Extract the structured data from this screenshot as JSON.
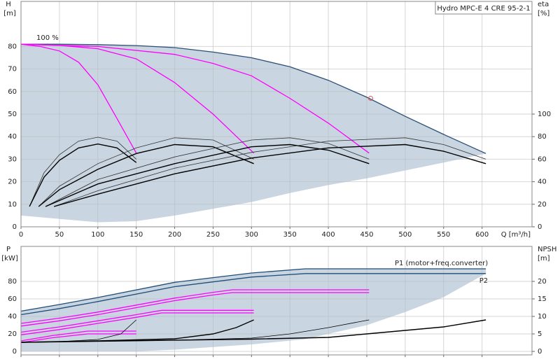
{
  "chart_data": [
    {
      "type": "line",
      "title": "Hydro MPC-E 4 CRE 95-2-1",
      "ylabel": "H",
      "yunit": "[m]",
      "y2label": "eta",
      "y2unit": "[%]",
      "xlabel": "Q [m³/h]",
      "xlim": [
        0,
        665
      ],
      "ylim": [
        0,
        100
      ],
      "y2lim": [
        0,
        200
      ],
      "xticks": [
        0,
        50,
        100,
        150,
        200,
        250,
        300,
        350,
        400,
        450,
        500,
        550,
        600
      ],
      "yticks": [
        0,
        10,
        20,
        30,
        40,
        50,
        60,
        70,
        80
      ],
      "y2ticks": [
        0,
        20,
        40,
        60,
        80,
        100
      ],
      "grid": true,
      "envelope": {
        "color": "#c9d6e2",
        "x": [
          0,
          50,
          100,
          150,
          200,
          250,
          300,
          350,
          400,
          450,
          500,
          550,
          605
        ],
        "upper": [
          81,
          81,
          80.8,
          80.4,
          79.5,
          77.5,
          75,
          71,
          65,
          57.5,
          49,
          41,
          32.5
        ],
        "lower": [
          5,
          3.5,
          2,
          2.5,
          5,
          8,
          11,
          15,
          18.5,
          21.5,
          25,
          28.5,
          32.5
        ]
      },
      "duty_point": {
        "x": 455,
        "y": 57,
        "color": "#e05050"
      },
      "series": [
        {
          "name": "100 %",
          "color": "#2b4f77",
          "x": [
            0,
            50,
            100,
            150,
            200,
            250,
            300,
            350,
            400,
            450,
            500,
            550,
            605
          ],
          "values": [
            81,
            81,
            80.8,
            80.4,
            79.5,
            77.5,
            75,
            71,
            65,
            57.5,
            49,
            41,
            32.5
          ]
        },
        {
          "color": "#ff00ff",
          "x": [
            0,
            25,
            50,
            75,
            100,
            125,
            150
          ],
          "values": [
            81,
            80,
            78,
            73,
            63,
            48,
            32.7
          ]
        },
        {
          "color": "#ff00ff",
          "x": [
            0,
            50,
            100,
            150,
            200,
            250,
            303
          ],
          "values": [
            81,
            80.5,
            79,
            74.5,
            64,
            50,
            32.7
          ]
        },
        {
          "color": "#ff00ff",
          "x": [
            0,
            100,
            200,
            250,
            300,
            350,
            400,
            453
          ],
          "values": [
            81,
            80,
            76.5,
            72.5,
            67,
            57,
            46,
            32.7
          ]
        },
        {
          "color": "#333333",
          "axis": "y2",
          "x": [
            11,
            30,
            50,
            75,
            100,
            125,
            150
          ],
          "values": [
            18,
            48,
            64,
            76,
            79.5,
            76,
            60
          ]
        },
        {
          "color": "#000000",
          "axis": "y2",
          "x": [
            11,
            30,
            50,
            75,
            100,
            125,
            150
          ],
          "values": [
            18,
            44,
            59,
            70,
            73.5,
            70,
            57
          ]
        },
        {
          "color": "#333333",
          "axis": "y2",
          "x": [
            23,
            50,
            100,
            150,
            200,
            250,
            303
          ],
          "values": [
            18,
            36,
            56,
            70,
            79,
            77,
            60
          ]
        },
        {
          "color": "#000000",
          "axis": "y2",
          "x": [
            23,
            50,
            100,
            150,
            200,
            250,
            303
          ],
          "values": [
            18,
            33,
            51,
            65,
            73,
            71,
            56
          ]
        },
        {
          "color": "#333333",
          "axis": "y2",
          "x": [
            32,
            100,
            200,
            300,
            350,
            400,
            453
          ],
          "values": [
            18,
            42,
            62,
            77,
            79,
            74,
            60
          ]
        },
        {
          "color": "#000000",
          "axis": "y2",
          "x": [
            32,
            100,
            200,
            300,
            350,
            400,
            453
          ],
          "values": [
            18,
            38,
            56,
            71,
            73,
            68,
            56
          ]
        },
        {
          "color": "#333333",
          "axis": "y2",
          "x": [
            43,
            100,
            200,
            300,
            400,
            500,
            550,
            605
          ],
          "values": [
            18,
            32,
            52,
            66,
            76,
            79,
            73,
            60
          ]
        },
        {
          "color": "#000000",
          "axis": "y2",
          "x": [
            43,
            100,
            200,
            300,
            400,
            500,
            550,
            605
          ],
          "values": [
            18,
            29,
            47,
            61,
            70,
            73,
            67,
            56
          ]
        }
      ]
    },
    {
      "type": "line",
      "ylabel": "P",
      "yunit": "[kW]",
      "y2label": "NPSH",
      "y2unit": "[m]",
      "xlim": [
        0,
        665
      ],
      "ylim": [
        -4,
        120
      ],
      "y2lim": [
        -1,
        30
      ],
      "xticks": [
        0,
        50,
        100,
        150,
        200,
        250,
        300,
        350,
        400,
        450,
        500,
        550,
        600
      ],
      "xtick_labels": false,
      "yticks": [
        0,
        20,
        40,
        60,
        80
      ],
      "y2ticks": [
        0,
        5,
        10,
        15,
        20
      ],
      "grid": true,
      "envelope": {
        "color": "#c9d6e2",
        "x": [
          0,
          50,
          100,
          150,
          200,
          250,
          300,
          370,
          450,
          500,
          550,
          605
        ],
        "upper": [
          46,
          53.6,
          61.6,
          70,
          79,
          85,
          89.6,
          94.4,
          94.4,
          94.4,
          94.4,
          94.4
        ],
        "lower": [
          0,
          0,
          0,
          0,
          2,
          5,
          8,
          14,
          30,
          45,
          62,
          89
        ]
      },
      "series": [
        {
          "name": "P1 (motor+freq.converter)",
          "color": "#1f4e79",
          "x": [
            0,
            50,
            100,
            200,
            300,
            370,
            605
          ],
          "values": [
            46,
            53.6,
            61.6,
            79,
            89.6,
            94.4,
            94.4
          ]
        },
        {
          "name": "P2",
          "color": "#1f4e79",
          "x": [
            0,
            50,
            100,
            200,
            300,
            370,
            605
          ],
          "values": [
            42,
            49,
            57,
            74,
            85,
            89,
            89
          ]
        },
        {
          "color": "#ff00ff",
          "x": [
            0,
            40,
            87,
            150
          ],
          "values": [
            12,
            18,
            23.2,
            23.2
          ]
        },
        {
          "color": "#ff00ff",
          "x": [
            0,
            40,
            87,
            150
          ],
          "values": [
            10,
            15.5,
            20,
            20
          ]
        },
        {
          "color": "#ff00ff",
          "x": [
            0,
            50,
            100,
            150,
            183,
            303
          ],
          "values": [
            22,
            28,
            35,
            42,
            47,
            47
          ]
        },
        {
          "color": "#ff00ff",
          "x": [
            0,
            50,
            100,
            150,
            183,
            303
          ],
          "values": [
            19,
            25,
            32,
            39,
            44,
            44
          ]
        },
        {
          "color": "#ff00ff",
          "x": [
            0,
            50,
            100,
            150,
            200,
            250,
            275,
            453
          ],
          "values": [
            32,
            38,
            45,
            53,
            61,
            67.5,
            70.4,
            70.4
          ]
        },
        {
          "color": "#ff00ff",
          "x": [
            0,
            50,
            100,
            150,
            200,
            250,
            275,
            453
          ],
          "values": [
            29,
            35,
            42,
            50,
            58,
            64.5,
            67.2,
            67.2
          ]
        },
        {
          "color": "#000000",
          "axis": "y2",
          "x": [
            0,
            50,
            100,
            130,
            150
          ],
          "values": [
            2.6,
            2.8,
            3.4,
            5,
            9
          ]
        },
        {
          "color": "#000000",
          "axis": "y2",
          "x": [
            0,
            100,
            200,
            250,
            280,
            303
          ],
          "values": [
            2.6,
            3,
            3.6,
            5,
            6.8,
            9
          ]
        },
        {
          "color": "#000000",
          "axis": "y2",
          "x": [
            0,
            200,
            300,
            350,
            400,
            453
          ],
          "values": [
            2.6,
            3.2,
            3.8,
            5,
            6.8,
            9
          ]
        },
        {
          "color": "#000000",
          "axis": "y2",
          "x": [
            0,
            300,
            400,
            450,
            500,
            550,
            605
          ],
          "values": [
            2.6,
            3.5,
            4,
            5,
            6,
            7,
            9
          ]
        }
      ]
    }
  ]
}
